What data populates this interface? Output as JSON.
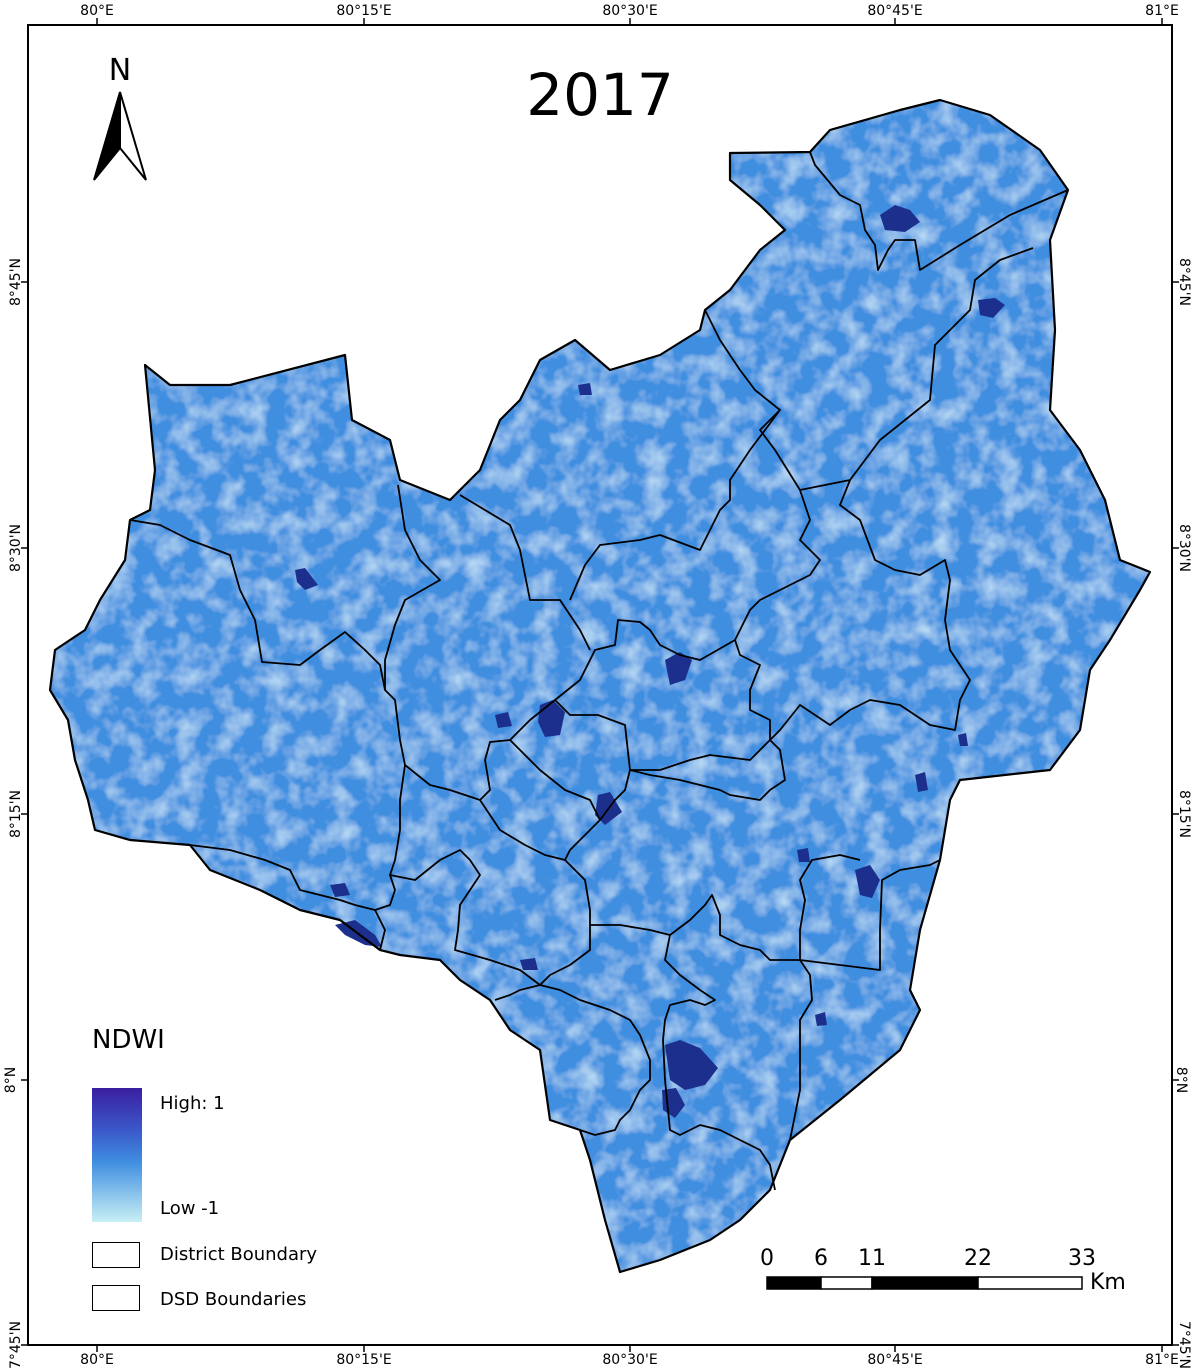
{
  "map": {
    "title": "2017",
    "north_label": "N",
    "graticule": {
      "longitude_labels": [
        "80°E",
        "80°15'E",
        "80°30'E",
        "80°45'E",
        "81°E"
      ],
      "latitude_labels": [
        "7°45'N",
        "8°N",
        "8°15'N",
        "8°30'N",
        "8°45'N"
      ]
    },
    "colors": {
      "fill_base": "#3f8ee0",
      "fill_light": "#8cc4ec",
      "water_dark": "#1c2f8c",
      "boundary": "#000000"
    }
  },
  "legend": {
    "title": "NDWI",
    "high_label": "High: 1",
    "low_label": "Low -1",
    "ramp_colors": [
      "#3a1fa0",
      "#3b55c8",
      "#3f8ee0",
      "#8cc4ec",
      "#c8f0f4"
    ],
    "items": [
      {
        "label": "District Boundary"
      },
      {
        "label": "DSD Boundaries"
      }
    ]
  },
  "scale_bar": {
    "labels": [
      "0",
      "6",
      "11",
      "22",
      "33"
    ],
    "unit": "Km"
  }
}
